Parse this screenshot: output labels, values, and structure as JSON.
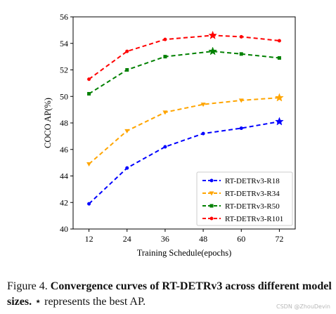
{
  "chart_data": {
    "type": "line",
    "x": [
      12,
      24,
      36,
      48,
      60,
      72
    ],
    "xlabel": "Training Schedule(epochs)",
    "ylabel": "COCO AP(%)",
    "xlim": [
      7,
      77
    ],
    "ylim": [
      40,
      56
    ],
    "xticks": [
      12,
      24,
      36,
      48,
      60,
      72
    ],
    "yticks": [
      40,
      42,
      44,
      46,
      48,
      50,
      52,
      54,
      56
    ],
    "grid": false,
    "legend_position": "lower-right",
    "series": [
      {
        "name": "RT-DETRv3-R18",
        "color": "#0000ff",
        "marker": "circle",
        "x": [
          12,
          24,
          36,
          48,
          60,
          72
        ],
        "values": [
          41.9,
          44.6,
          46.2,
          47.2,
          47.6,
          48.1
        ],
        "best_index": 5
      },
      {
        "name": "RT-DETRv3-R34",
        "color": "#ffa500",
        "marker": "triangle-down",
        "x": [
          12,
          24,
          36,
          48,
          60,
          72
        ],
        "values": [
          44.9,
          47.4,
          48.8,
          49.4,
          49.7,
          49.9
        ],
        "best_index": 5
      },
      {
        "name": "RT-DETRv3-R50",
        "color": "#008000",
        "marker": "square",
        "x": [
          12,
          24,
          36,
          51,
          60,
          72
        ],
        "values": [
          50.2,
          52.0,
          53.0,
          53.4,
          53.2,
          52.9
        ],
        "best_index": 3
      },
      {
        "name": "RT-DETRv3-R101",
        "color": "#ff0000",
        "marker": "circle",
        "x": [
          12,
          24,
          36,
          51,
          60,
          72
        ],
        "values": [
          51.3,
          53.4,
          54.3,
          54.6,
          54.5,
          54.2
        ],
        "best_index": 3
      }
    ]
  },
  "caption": {
    "label": "Figure 4.",
    "bold_text": "Convergence curves of RT-DETRv3 across different model sizes.",
    "star_symbol": "⋆",
    "rest_text": "represents the best AP."
  },
  "watermark": "CSDN @ZhouDevin"
}
